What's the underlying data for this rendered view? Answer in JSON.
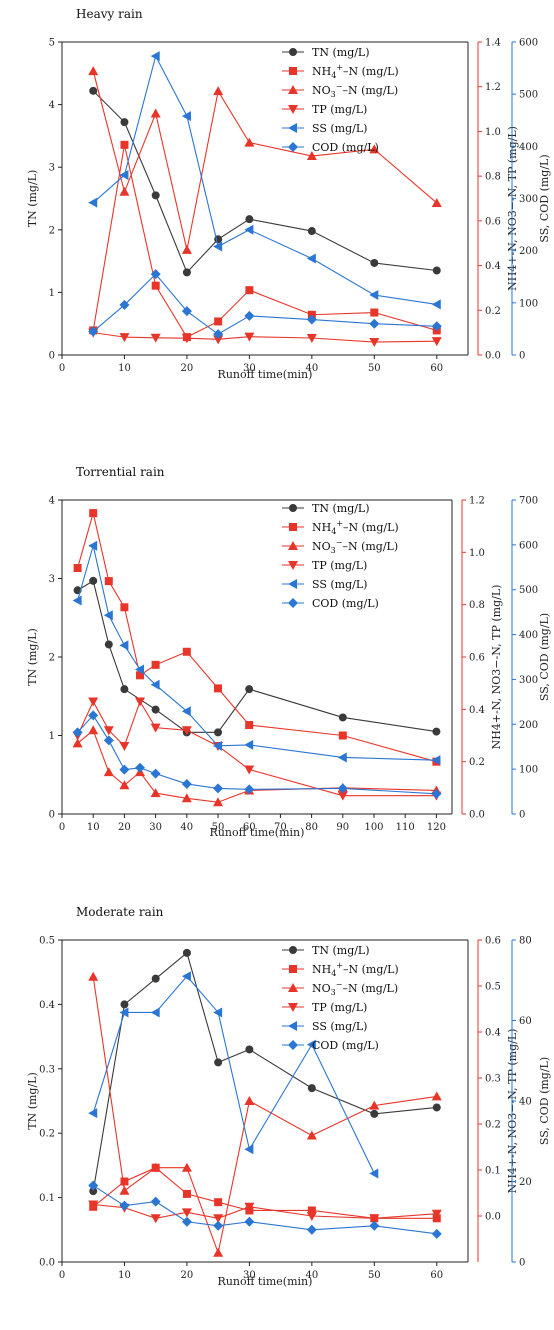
{
  "colors": {
    "black": "#3a3a3a",
    "red": "#e8352a",
    "blue": "#2a76d2"
  },
  "series_meta": [
    {
      "name_main": "TN",
      "name_sub": "",
      "name_unit": " (mg/L)",
      "color": "black",
      "marker": "circle",
      "axis": "left"
    },
    {
      "name_main": "NH",
      "name_sub": "4",
      "name_sup": "+",
      "name_tail": "–N",
      "name_unit": " (mg/L)",
      "color": "red",
      "marker": "square",
      "axis": "mid"
    },
    {
      "name_main": "NO",
      "name_sub": "3",
      "name_sup": "−",
      "name_tail": "–N",
      "name_unit": " (mg/L)",
      "color": "red",
      "marker": "triangle-up",
      "axis": "mid"
    },
    {
      "name_main": "TP",
      "name_sub": "",
      "name_unit": " (mg/L)",
      "color": "red",
      "marker": "triangle-down",
      "axis": "mid"
    },
    {
      "name_main": "SS",
      "name_sub": "",
      "name_unit": " (mg/L)",
      "color": "blue",
      "marker": "triangle-left",
      "axis": "right"
    },
    {
      "name_main": "COD",
      "name_sub": "",
      "name_unit": " (mg/L)",
      "color": "blue",
      "marker": "diamond",
      "axis": "right"
    }
  ],
  "chart_data": [
    {
      "type": "line",
      "title": "Heavy rain",
      "xlabel": "Runoff time(min)",
      "ylabel_left": "TN (mg/L)",
      "ylabel_mid": "NH4+-N, NO3−-N, TP (mg/L)",
      "ylabel_right": "SS, COD (mg/L)",
      "xlim": [
        0,
        65
      ],
      "xticks": [
        0,
        10,
        20,
        30,
        40,
        50,
        60
      ],
      "ylim_left": [
        0,
        5
      ],
      "yticks_left": [
        0,
        1,
        2,
        3,
        4,
        5
      ],
      "ylim_mid": [
        0,
        1.4
      ],
      "yticks_mid": [
        "0.0",
        "0.2",
        "0.4",
        "0.6",
        "0.8",
        "1.0",
        "1.2",
        "1.4"
      ],
      "ylim_right": [
        0,
        600
      ],
      "yticks_right": [
        0,
        100,
        200,
        300,
        400,
        500,
        600
      ],
      "series": [
        {
          "name": "TN (mg/L)",
          "x": [
            5,
            10,
            15,
            20,
            25,
            30,
            40,
            50,
            60
          ],
          "values": [
            4.22,
            3.72,
            2.55,
            1.32,
            1.85,
            2.17,
            1.98,
            1.47,
            1.35
          ]
        },
        {
          "name": "NH4+-N (mg/L)",
          "x": [
            5,
            10,
            15,
            20,
            25,
            30,
            40,
            50,
            60
          ],
          "values": [
            0.11,
            0.94,
            0.31,
            0.08,
            0.15,
            0.29,
            0.18,
            0.19,
            0.11
          ]
        },
        {
          "name": "NO3−-N (mg/L)",
          "x": [
            5,
            10,
            15,
            20,
            25,
            30,
            40,
            50,
            60
          ],
          "values": [
            1.27,
            0.73,
            1.08,
            0.47,
            1.18,
            0.95,
            0.89,
            0.92,
            0.68
          ]
        },
        {
          "name": "TP (mg/L)",
          "x": [
            5,
            10,
            15,
            20,
            25,
            30,
            40,
            50,
            60
          ],
          "values": [
            0.1,
            0.08,
            0.077,
            0.075,
            0.07,
            0.082,
            0.076,
            0.058,
            0.062
          ]
        },
        {
          "name": "SS (mg/L)",
          "x": [
            5,
            10,
            15,
            20,
            25,
            30,
            40,
            50,
            60
          ],
          "values": [
            292,
            345,
            573,
            458,
            208,
            240,
            185,
            115,
            97
          ]
        },
        {
          "name": "COD (mg/L)",
          "x": [
            5,
            10,
            15,
            20,
            25,
            30,
            40,
            50,
            60
          ],
          "values": [
            45,
            96,
            155,
            84,
            40,
            75,
            68,
            60,
            55
          ]
        }
      ]
    },
    {
      "type": "line",
      "title": "Torrential rain",
      "xlabel": "Runoff time(min)",
      "ylabel_left": "TN (mg/L)",
      "ylabel_mid": "NH4+-N, NO3−-N, TP (mg/L)",
      "ylabel_right": "SS, COD (mg/L)",
      "xlim": [
        0,
        125
      ],
      "xticks": [
        0,
        10,
        20,
        30,
        40,
        50,
        60,
        70,
        80,
        90,
        100,
        110,
        120
      ],
      "ylim_left": [
        0,
        4
      ],
      "yticks_left": [
        0,
        1,
        2,
        3,
        4
      ],
      "ylim_mid": [
        0,
        1.2
      ],
      "yticks_mid": [
        "0.0",
        "0.2",
        "0.4",
        "0.6",
        "0.8",
        "1.0",
        "1.2"
      ],
      "ylim_right": [
        0,
        700
      ],
      "yticks_right": [
        0,
        100,
        200,
        300,
        400,
        500,
        600,
        700
      ],
      "series": [
        {
          "name": "TN (mg/L)",
          "x": [
            5,
            10,
            15,
            20,
            30,
            40,
            50,
            60,
            90,
            120
          ],
          "values": [
            2.85,
            2.97,
            2.16,
            1.59,
            1.33,
            1.04,
            1.04,
            1.59,
            1.23,
            1.05
          ]
        },
        {
          "name": "NH4+-N (mg/L)",
          "x": [
            5,
            10,
            15,
            20,
            25,
            30,
            40,
            50,
            60,
            90,
            120
          ],
          "values": [
            0.94,
            1.15,
            0.89,
            0.79,
            0.53,
            0.57,
            0.62,
            0.48,
            0.34,
            0.3,
            0.2
          ]
        },
        {
          "name": "NO3−-N (mg/L)",
          "x": [
            5,
            10,
            15,
            20,
            25,
            30,
            40,
            50,
            60,
            90,
            120
          ],
          "values": [
            0.27,
            0.32,
            0.16,
            0.11,
            0.16,
            0.08,
            0.06,
            0.045,
            0.09,
            0.1,
            0.09
          ]
        },
        {
          "name": "TP (mg/L)",
          "x": [
            5,
            10,
            15,
            20,
            25,
            30,
            40,
            50,
            60,
            90,
            120
          ],
          "values": [
            0.3,
            0.43,
            0.32,
            0.26,
            0.43,
            0.33,
            0.32,
            0.26,
            0.17,
            0.07,
            0.07
          ]
        },
        {
          "name": "SS (mg/L)",
          "x": [
            5,
            10,
            15,
            20,
            25,
            30,
            40,
            50,
            60,
            90,
            120
          ],
          "values": [
            476,
            598,
            443,
            376,
            322,
            288,
            229,
            152,
            154,
            126,
            120
          ]
        },
        {
          "name": "COD (mg/L)",
          "x": [
            5,
            10,
            15,
            20,
            25,
            30,
            40,
            50,
            60,
            90,
            120
          ],
          "values": [
            182,
            220,
            164,
            99,
            103,
            90,
            67,
            57,
            55,
            57,
            45
          ]
        }
      ]
    },
    {
      "type": "line",
      "title": "Moderate rain",
      "xlabel": "Runoff time(min)",
      "ylabel_left": "TN (mg/L)",
      "ylabel_mid": "NH4+-N, NO3−-N, TP (mg/L)",
      "ylabel_right": "SS, COD (mg/L)",
      "xlim": [
        0,
        65
      ],
      "xticks": [
        0,
        10,
        20,
        30,
        40,
        50,
        60
      ],
      "ylim_left": [
        0,
        0.5
      ],
      "yticks_left": [
        "0.0",
        "0.1",
        "0.2",
        "0.3",
        "0.4",
        "0.5"
      ],
      "ylim_mid": [
        -0.1,
        0.6
      ],
      "yticks_mid": [
        "0.0",
        "0.1",
        "0.2",
        "0.3",
        "0.4",
        "0.5",
        "0.6"
      ],
      "ylim_right": [
        0,
        80
      ],
      "yticks_right": [
        0,
        20,
        40,
        60,
        80
      ],
      "series": [
        {
          "name": "TN (mg/L)",
          "x": [
            5,
            10,
            15,
            20,
            25,
            30,
            40,
            50,
            60
          ],
          "values": [
            0.11,
            0.4,
            0.44,
            0.48,
            0.31,
            0.33,
            0.27,
            0.23,
            0.24
          ]
        },
        {
          "name": "NH4+-N (mg/L)",
          "x": [
            5,
            10,
            15,
            20,
            25,
            30,
            40,
            50,
            60
          ],
          "values": [
            0.02,
            0.075,
            0.105,
            0.048,
            0.03,
            0.012,
            0.012,
            -0.005,
            -0.005
          ]
        },
        {
          "name": "NO3−-N (mg/L)",
          "x": [
            5,
            10,
            15,
            20,
            25,
            30,
            40,
            50,
            60
          ],
          "values": [
            0.52,
            0.055,
            0.105,
            0.105,
            -0.08,
            0.25,
            0.175,
            0.24,
            0.26
          ]
        },
        {
          "name": "TP (mg/L)",
          "x": [
            5,
            10,
            15,
            20,
            25,
            30,
            40,
            50,
            60
          ],
          "values": [
            0.025,
            0.018,
            -0.005,
            0.008,
            -0.005,
            0.02,
            0.0,
            -0.005,
            0.005
          ]
        },
        {
          "name": "SS (mg/L)",
          "x": [
            5,
            10,
            15,
            20,
            25,
            30,
            40,
            50,
            60
          ],
          "values": [
            null,
            null,
            null,
            null,
            null,
            null,
            null,
            null,
            null
          ]
        },
        {
          "name": "COD (mg/L)",
          "x": [
            5,
            10,
            15,
            20,
            25,
            30,
            40,
            50,
            60
          ],
          "values": [
            19,
            14,
            15,
            10,
            9,
            10,
            8,
            9,
            7
          ]
        }
      ],
      "ss_points": {
        "x": [
          5,
          10,
          15,
          20,
          25,
          30,
          40,
          50
        ],
        "values": [
          37,
          62,
          62,
          71,
          62,
          28,
          54,
          22
        ]
      }
    }
  ]
}
